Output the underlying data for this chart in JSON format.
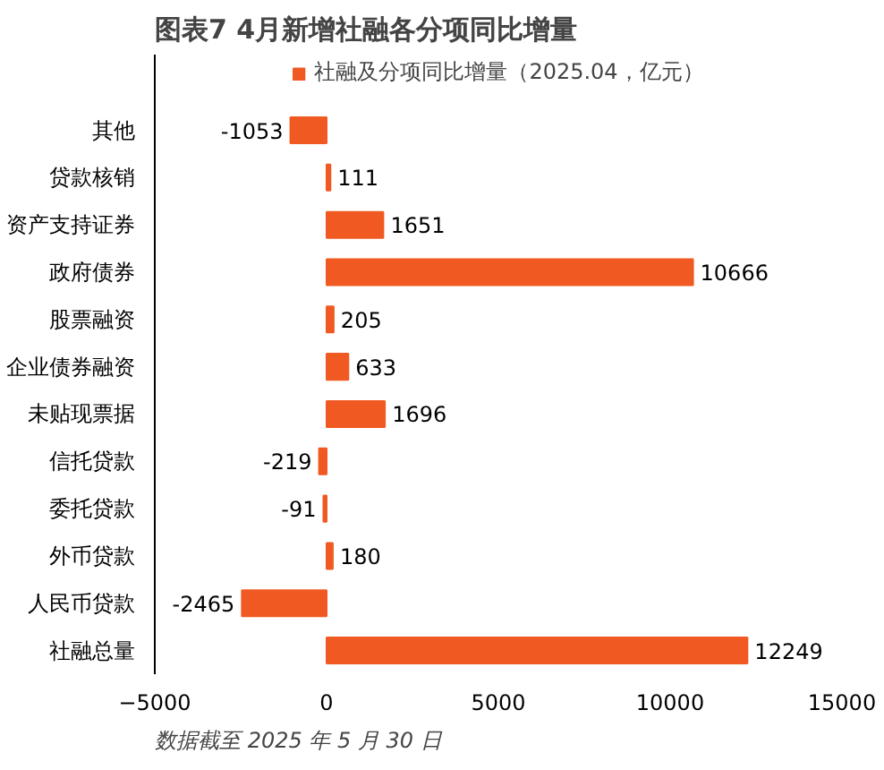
{
  "chart_data": {
    "type": "bar",
    "orientation": "horizontal",
    "title": "图表7    4月新增社融各分项同比增量",
    "categories": [
      "其他",
      "贷款核销",
      "资产支持证券",
      "政府债券",
      "股票融资",
      "企业债券融资",
      "未贴现票据",
      "信托贷款",
      "委托贷款",
      "外币贷款",
      "人民币贷款",
      "社融总量"
    ],
    "series": [
      {
        "name": "社融及分项同比增量（2025.04，亿元）",
        "color": "#f05a22",
        "values": [
          -1053,
          111,
          1651,
          10666,
          205,
          633,
          1696,
          -219,
          -91,
          180,
          -2465,
          12249
        ]
      }
    ],
    "xlim": [
      -5000,
      15000
    ],
    "xticks": [
      -5000,
      0,
      5000,
      10000,
      15000
    ],
    "data_labels": true,
    "legend": "top",
    "grid": false,
    "annotations": [
      "数据截至 2025 年 5 月 30 日"
    ]
  }
}
